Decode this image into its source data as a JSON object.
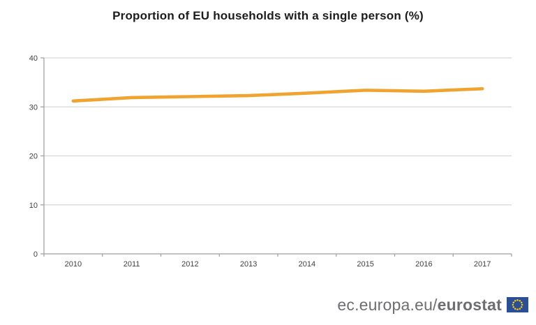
{
  "title": "Proportion of EU households with a single person (%)",
  "footer": {
    "url_regular": "ec.europa.eu/",
    "url_bold": "eurostat",
    "flag_icon": "eu-flag-icon"
  },
  "colors": {
    "line": "#f0a32f",
    "gridline": "#d7d7d7",
    "axis": "#a3a3a3",
    "title_text": "#1c1c1c",
    "tick_text": "#404040",
    "footer_text": "#6d6e71",
    "flag_blue": "#2b4f97",
    "flag_stars": "#ffcc00"
  },
  "chart_data": {
    "type": "line",
    "title": "Proportion of EU households with a single person (%)",
    "categories": [
      "2010",
      "2011",
      "2012",
      "2013",
      "2014",
      "2015",
      "2016",
      "2017"
    ],
    "values": [
      31.2,
      31.9,
      32.1,
      32.3,
      32.8,
      33.4,
      33.2,
      33.7
    ],
    "xlabel": "",
    "ylabel": "",
    "ylim": [
      0,
      40
    ],
    "yticks": [
      0,
      10,
      20,
      30,
      40
    ],
    "grid": true,
    "legend": false,
    "line_color": "#f0a32f"
  }
}
